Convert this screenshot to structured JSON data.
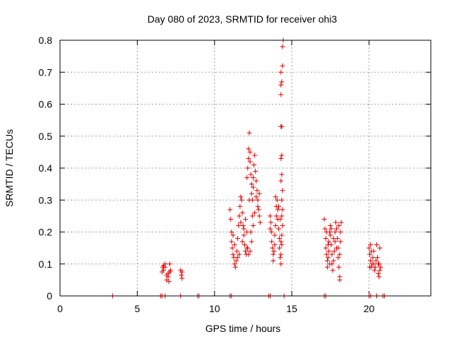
{
  "chart_data": {
    "type": "scatter",
    "title": "Day 080 of 2023, SRMTID for receiver ohi3",
    "xlabel": "GPS time / hours",
    "ylabel": "SRMTID / TECUs",
    "xlim": [
      0,
      24
    ],
    "ylim": [
      0,
      0.8
    ],
    "xticks": [
      0,
      5,
      10,
      15,
      20
    ],
    "yticks": [
      0,
      0.1,
      0.2,
      0.3,
      0.4,
      0.5,
      0.6,
      0.7,
      0.8
    ],
    "grid": true,
    "marker": "+",
    "marker_color": "#e00000",
    "series": [
      {
        "name": "ohi3",
        "points": [
          [
            3.4,
            0
          ],
          [
            6.5,
            0
          ],
          [
            6.6,
            0
          ],
          [
            6.8,
            0
          ],
          [
            7.8,
            0
          ],
          [
            8.9,
            0
          ],
          [
            9.0,
            0
          ],
          [
            11.0,
            0
          ],
          [
            11.1,
            0
          ],
          [
            13.5,
            0
          ],
          [
            13.6,
            0
          ],
          [
            14.5,
            0
          ],
          [
            17.1,
            0
          ],
          [
            17.2,
            0
          ],
          [
            20.0,
            0
          ],
          [
            20.1,
            0
          ],
          [
            20.5,
            0
          ],
          [
            20.9,
            0
          ],
          [
            21.0,
            0
          ],
          [
            6.6,
            0.075
          ],
          [
            6.7,
            0.08
          ],
          [
            6.7,
            0.095
          ],
          [
            6.8,
            0.09
          ],
          [
            6.8,
            0.1
          ],
          [
            6.9,
            0.065
          ],
          [
            6.9,
            0.05
          ],
          [
            7.0,
            0.07
          ],
          [
            7.0,
            0.06
          ],
          [
            7.05,
            0.045
          ],
          [
            7.1,
            0.075
          ],
          [
            7.1,
            0.1
          ],
          [
            7.15,
            0.08
          ],
          [
            6.65,
            0.09
          ],
          [
            7.8,
            0.08
          ],
          [
            7.85,
            0.065
          ],
          [
            7.9,
            0.055
          ],
          [
            7.9,
            0.075
          ],
          [
            11.0,
            0.27
          ],
          [
            11.05,
            0.24
          ],
          [
            11.1,
            0.2
          ],
          [
            11.1,
            0.17
          ],
          [
            11.15,
            0.15
          ],
          [
            11.2,
            0.13
          ],
          [
            11.25,
            0.12
          ],
          [
            11.3,
            0.1
          ],
          [
            11.35,
            0.09
          ],
          [
            11.4,
            0.11
          ],
          [
            11.45,
            0.14
          ],
          [
            11.5,
            0.18
          ],
          [
            11.55,
            0.22
          ],
          [
            11.6,
            0.25
          ],
          [
            11.65,
            0.28
          ],
          [
            11.7,
            0.31
          ],
          [
            11.75,
            0.3
          ],
          [
            11.8,
            0.26
          ],
          [
            11.85,
            0.22
          ],
          [
            11.9,
            0.19
          ],
          [
            11.95,
            0.16
          ],
          [
            12.0,
            0.14
          ],
          [
            12.05,
            0.13
          ],
          [
            12.1,
            0.15
          ],
          [
            12.1,
            0.2
          ],
          [
            11.9,
            0.21
          ],
          [
            11.7,
            0.23
          ],
          [
            11.5,
            0.12
          ],
          [
            11.6,
            0.13
          ],
          [
            11.3,
            0.16
          ],
          [
            11.2,
            0.19
          ],
          [
            11.8,
            0.17
          ],
          [
            12.0,
            0.24
          ],
          [
            12.1,
            0.37
          ],
          [
            12.15,
            0.4
          ],
          [
            12.2,
            0.43
          ],
          [
            12.2,
            0.46
          ],
          [
            12.25,
            0.51
          ],
          [
            12.3,
            0.45
          ],
          [
            12.3,
            0.42
          ],
          [
            12.35,
            0.38
          ],
          [
            12.4,
            0.35
          ],
          [
            12.4,
            0.32
          ],
          [
            12.45,
            0.3
          ],
          [
            12.5,
            0.34
          ],
          [
            12.5,
            0.37
          ],
          [
            12.55,
            0.41
          ],
          [
            12.6,
            0.44
          ],
          [
            12.65,
            0.39
          ],
          [
            12.7,
            0.36
          ],
          [
            12.75,
            0.33
          ],
          [
            12.8,
            0.3
          ],
          [
            12.85,
            0.27
          ],
          [
            12.9,
            0.25
          ],
          [
            12.95,
            0.23
          ],
          [
            12.8,
            0.28
          ],
          [
            12.7,
            0.31
          ],
          [
            12.6,
            0.26
          ],
          [
            12.5,
            0.22
          ],
          [
            12.4,
            0.17
          ],
          [
            12.3,
            0.14
          ],
          [
            12.2,
            0.13
          ],
          [
            12.15,
            0.15
          ],
          [
            12.35,
            0.2
          ],
          [
            12.45,
            0.25
          ],
          [
            12.25,
            0.3
          ],
          [
            12.9,
            0.32
          ],
          [
            13.6,
            0.25
          ],
          [
            13.65,
            0.23
          ],
          [
            13.7,
            0.2
          ],
          [
            13.7,
            0.17
          ],
          [
            13.75,
            0.15
          ],
          [
            13.8,
            0.13
          ],
          [
            13.8,
            0.11
          ],
          [
            13.85,
            0.14
          ],
          [
            13.9,
            0.16
          ],
          [
            13.9,
            0.19
          ],
          [
            13.95,
            0.22
          ],
          [
            14.0,
            0.25
          ],
          [
            14.0,
            0.28
          ],
          [
            14.05,
            0.3
          ],
          [
            14.1,
            0.27
          ],
          [
            14.1,
            0.24
          ],
          [
            14.15,
            0.21
          ],
          [
            14.2,
            0.18
          ],
          [
            14.2,
            0.15
          ],
          [
            14.25,
            0.12
          ],
          [
            14.3,
            0.1
          ],
          [
            14.3,
            0.13
          ],
          [
            14.35,
            0.16
          ],
          [
            13.95,
            0.31
          ],
          [
            13.6,
            0.21
          ],
          [
            14.15,
            0.28
          ],
          [
            14.25,
            0.24
          ],
          [
            14.3,
            0.43
          ],
          [
            14.35,
            0.44
          ],
          [
            14.3,
            0.53
          ],
          [
            14.35,
            0.53
          ],
          [
            14.3,
            0.63
          ],
          [
            14.35,
            0.67
          ],
          [
            14.3,
            0.7
          ],
          [
            14.4,
            0.72
          ],
          [
            14.4,
            0.78
          ],
          [
            14.45,
            0.8
          ],
          [
            14.3,
            0.66
          ],
          [
            14.35,
            0.38
          ],
          [
            14.3,
            0.36
          ],
          [
            14.4,
            0.33
          ],
          [
            14.35,
            0.3
          ],
          [
            14.4,
            0.27
          ],
          [
            14.35,
            0.25
          ],
          [
            14.4,
            0.22
          ],
          [
            14.35,
            0.19
          ],
          [
            14.3,
            0.17
          ],
          [
            17.1,
            0.24
          ],
          [
            17.15,
            0.21
          ],
          [
            17.2,
            0.18
          ],
          [
            17.2,
            0.15
          ],
          [
            17.25,
            0.13
          ],
          [
            17.3,
            0.11
          ],
          [
            17.3,
            0.09
          ],
          [
            17.35,
            0.12
          ],
          [
            17.4,
            0.14
          ],
          [
            17.4,
            0.17
          ],
          [
            17.45,
            0.2
          ],
          [
            17.5,
            0.22
          ],
          [
            17.5,
            0.19
          ],
          [
            17.55,
            0.16
          ],
          [
            17.6,
            0.13
          ],
          [
            17.6,
            0.1
          ],
          [
            17.65,
            0.08
          ],
          [
            17.7,
            0.11
          ],
          [
            17.75,
            0.14
          ],
          [
            17.8,
            0.17
          ],
          [
            17.8,
            0.2
          ],
          [
            17.85,
            0.23
          ],
          [
            17.9,
            0.21
          ],
          [
            17.95,
            0.18
          ],
          [
            18.0,
            0.15
          ],
          [
            18.0,
            0.12
          ],
          [
            18.05,
            0.09
          ],
          [
            18.1,
            0.06
          ],
          [
            18.1,
            0.13
          ],
          [
            18.15,
            0.17
          ],
          [
            18.15,
            0.2
          ],
          [
            18.2,
            0.23
          ],
          [
            18.1,
            0.05
          ],
          [
            17.25,
            0.2
          ],
          [
            17.45,
            0.1
          ],
          [
            17.7,
            0.18
          ],
          [
            17.9,
            0.15
          ],
          [
            18.05,
            0.22
          ],
          [
            17.35,
            0.16
          ],
          [
            17.55,
            0.21
          ],
          [
            20.0,
            0.15
          ],
          [
            20.05,
            0.13
          ],
          [
            20.1,
            0.16
          ],
          [
            20.1,
            0.11
          ],
          [
            20.15,
            0.09
          ],
          [
            20.2,
            0.1
          ],
          [
            20.25,
            0.12
          ],
          [
            20.3,
            0.14
          ],
          [
            20.3,
            0.1
          ],
          [
            20.35,
            0.08
          ],
          [
            20.4,
            0.09
          ],
          [
            20.5,
            0.16
          ],
          [
            20.55,
            0.12
          ],
          [
            20.6,
            0.1
          ],
          [
            20.6,
            0.07
          ],
          [
            20.65,
            0.06
          ],
          [
            20.7,
            0.08
          ],
          [
            20.75,
            0.09
          ],
          [
            20.7,
            0.15
          ],
          [
            20.05,
            0.09
          ],
          [
            20.15,
            0.14
          ],
          [
            20.45,
            0.11
          ],
          [
            20.65,
            0.1
          ]
        ]
      }
    ]
  }
}
